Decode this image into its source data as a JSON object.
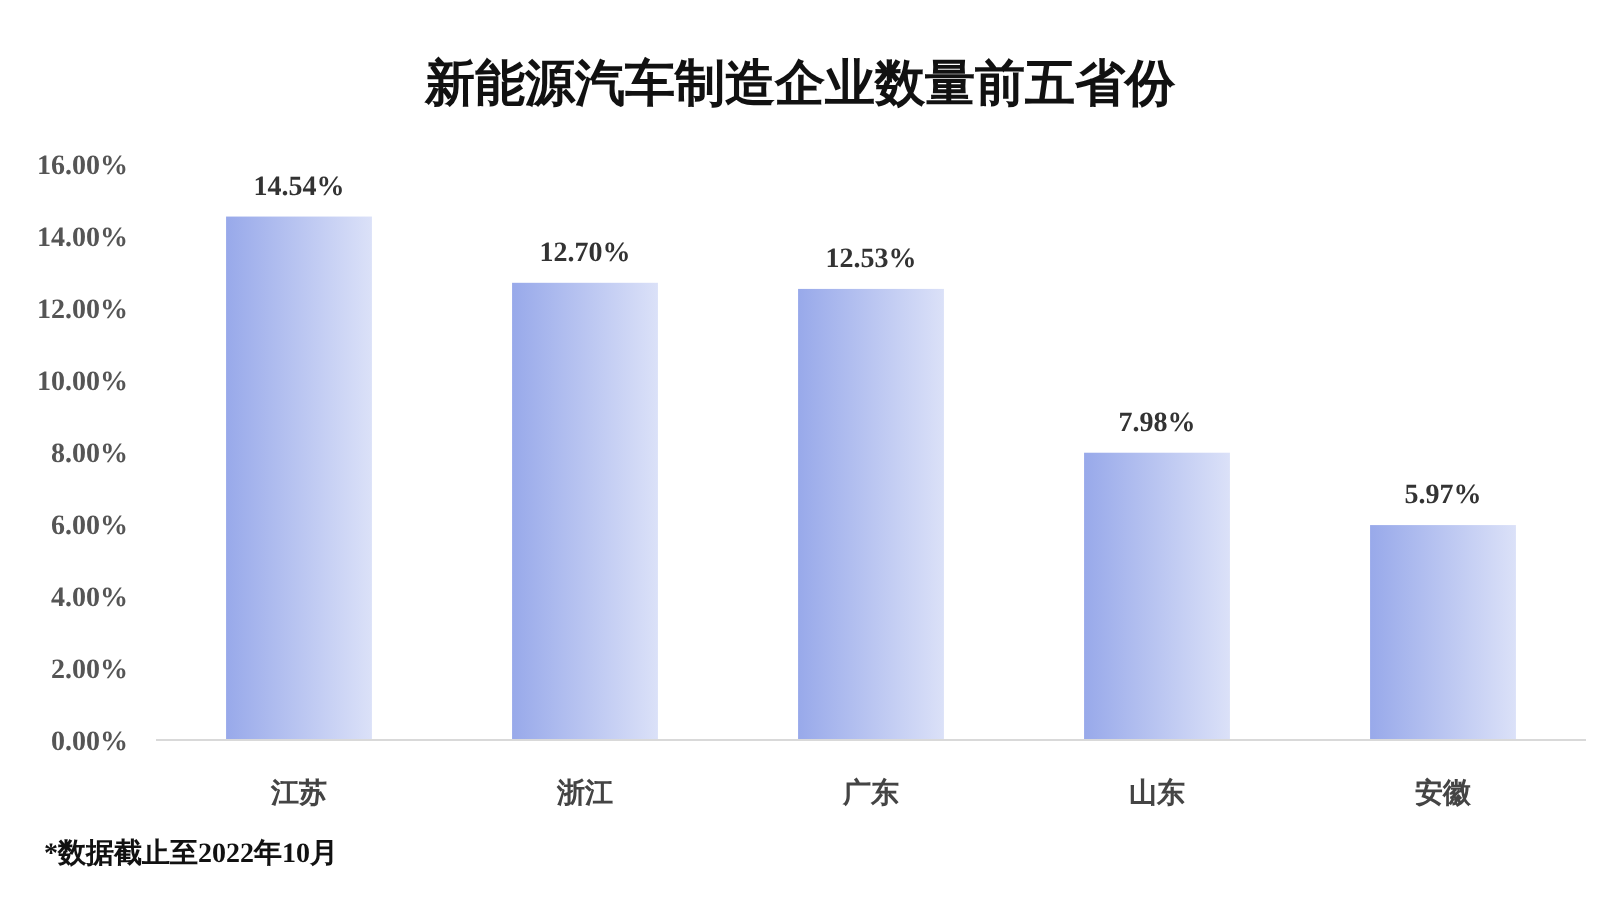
{
  "chart_data": {
    "type": "bar",
    "title": "新能源汽车制造企业数量前五省份",
    "categories": [
      "江苏",
      "浙江",
      "广东",
      "山东",
      "安徽"
    ],
    "values": [
      14.54,
      12.7,
      12.53,
      7.98,
      5.97
    ],
    "value_labels": [
      "14.54%",
      "12.70%",
      "12.53%",
      "7.98%",
      "5.97%"
    ],
    "color": "#98a9ea",
    "ylim": [
      0,
      16
    ],
    "yticks": [
      {
        "value": 0,
        "label": "0.00%"
      },
      {
        "value": 2,
        "label": "2.00%"
      },
      {
        "value": 4,
        "label": "4.00%"
      },
      {
        "value": 6,
        "label": "6.00%"
      },
      {
        "value": 8,
        "label": "8.00%"
      },
      {
        "value": 10,
        "label": "10.00%"
      },
      {
        "value": 12,
        "label": "12.00%"
      },
      {
        "value": 14,
        "label": "14.00%"
      },
      {
        "value": 16,
        "label": "16.00%"
      }
    ],
    "annotations": [
      "*数据截止至2022年10月"
    ]
  }
}
